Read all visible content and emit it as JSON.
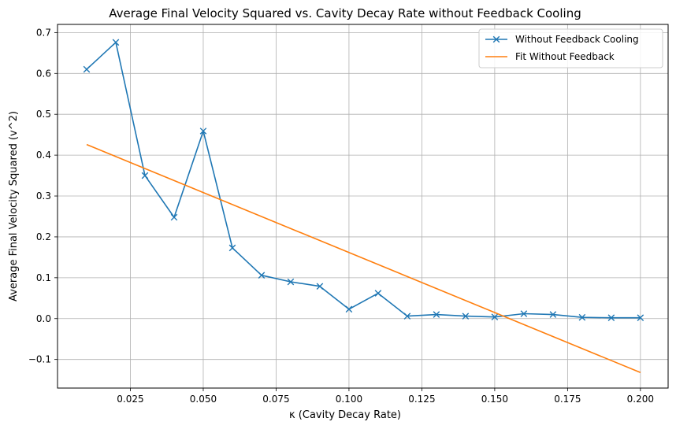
{
  "chart_data": {
    "type": "line",
    "title": "Average Final Velocity Squared vs. Cavity Decay Rate without Feedback Cooling",
    "xlabel": "κ (Cavity Decay Rate)",
    "ylabel": "Average Final Velocity Squared (v^2)",
    "xlim": [
      0.0,
      0.2095
    ],
    "ylim": [
      -0.17,
      0.72
    ],
    "xticks": [
      0.025,
      0.05,
      0.075,
      0.1,
      0.125,
      0.15,
      0.175,
      0.2
    ],
    "xtick_labels": [
      "0.025",
      "0.050",
      "0.075",
      "0.100",
      "0.125",
      "0.150",
      "0.175",
      "0.200"
    ],
    "yticks": [
      -0.1,
      0.0,
      0.1,
      0.2,
      0.3,
      0.4,
      0.5,
      0.6,
      0.7
    ],
    "ytick_labels": [
      "−0.1",
      "0.0",
      "0.1",
      "0.2",
      "0.3",
      "0.4",
      "0.5",
      "0.6",
      "0.7"
    ],
    "grid": true,
    "legend_position": "top-right",
    "series": [
      {
        "name": "Without Feedback Cooling",
        "color": "#1f77b4",
        "marker": "x",
        "x": [
          0.01,
          0.02,
          0.03,
          0.04,
          0.05,
          0.06,
          0.07,
          0.08,
          0.09,
          0.1,
          0.11,
          0.12,
          0.13,
          0.14,
          0.15,
          0.16,
          0.17,
          0.18,
          0.19,
          0.2
        ],
        "y": [
          0.61,
          0.676,
          0.35,
          0.248,
          0.459,
          0.173,
          0.106,
          0.09,
          0.079,
          0.023,
          0.062,
          0.006,
          0.01,
          0.006,
          0.004,
          0.012,
          0.01,
          0.003,
          0.002,
          0.002
        ]
      },
      {
        "name": "Fit Without Feedback",
        "color": "#ff7f0e",
        "marker": "none",
        "x": [
          0.01,
          0.2
        ],
        "y": [
          0.426,
          -0.132
        ]
      }
    ]
  }
}
